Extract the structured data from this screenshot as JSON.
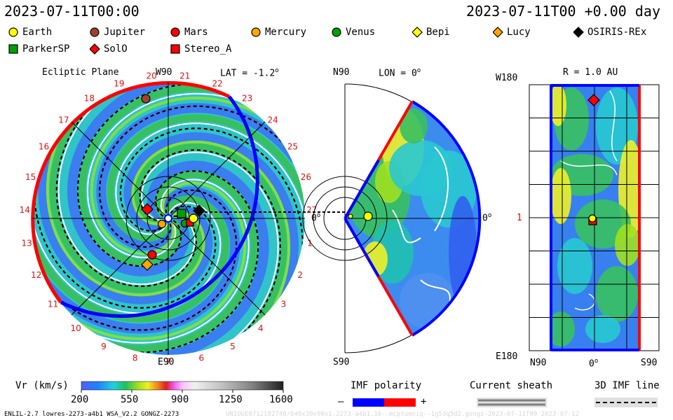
{
  "header": {
    "left_time": "2023-07-11T00:00",
    "right_time": "2023-07-11T00 +0.00 day"
  },
  "legend": {
    "items": [
      {
        "name": "Earth",
        "shape": "circle",
        "color": "#ffff00"
      },
      {
        "name": "Jupiter",
        "shape": "circle",
        "color": "#a0412d"
      },
      {
        "name": "Mars",
        "shape": "circle",
        "color": "#ff0000"
      },
      {
        "name": "Mercury",
        "shape": "circle",
        "color": "#ffa500"
      },
      {
        "name": "Venus",
        "shape": "circle",
        "color": "#00a000"
      },
      {
        "name": "Bepi",
        "shape": "diamond",
        "color": "#ffff00"
      },
      {
        "name": "Lucy",
        "shape": "diamond",
        "color": "#ffa500"
      },
      {
        "name": "OSIRIS-REx",
        "shape": "diamond",
        "color": "#000000"
      },
      {
        "name": "ParkerSP",
        "shape": "square",
        "color": "#00a000"
      },
      {
        "name": "SolO",
        "shape": "diamond",
        "color": "#ff0000"
      },
      {
        "name": "Stereo_A",
        "shape": "square",
        "color": "#ff0000"
      }
    ]
  },
  "panels": {
    "ecliptic": {
      "title": "Ecliptic Plane",
      "top_label": "W90",
      "lat_label": "LAT = -1.2",
      "lat_degree": "o",
      "bottom_label": "E90",
      "zero_label": "0",
      "zero_degree": "o",
      "left_label": "1",
      "rim_numbers": [
        "1",
        "2",
        "3",
        "4",
        "5",
        "6",
        "7",
        "8",
        "9",
        "10",
        "11",
        "12",
        "13",
        "14",
        "15",
        "16",
        "17",
        "18",
        "19",
        "20",
        "21",
        "22",
        "23",
        "24",
        "25",
        "26",
        "27"
      ]
    },
    "meridional": {
      "top_label": "N90",
      "lon_label": "LON = 0",
      "lon_degree": "o",
      "bottom_label": "S90",
      "zero_label": "0",
      "zero_degree": "o"
    },
    "radial": {
      "top_label": "W180",
      "r_label": "R = 1.0 AU",
      "bottom_label": "E180",
      "left_tick": "1",
      "xaxis_left": "N90",
      "xaxis_mid": "0",
      "xaxis_mid_degree": "o",
      "xaxis_right": "S90"
    }
  },
  "colorbar": {
    "label": "Vr (km/s)",
    "ticks": [
      "200",
      "550",
      "900",
      "1250",
      "1600"
    ]
  },
  "imf": {
    "label": "IMF polarity",
    "minus": "–",
    "plus": "+"
  },
  "current_sheath": {
    "label": "Current sheath"
  },
  "imf_line": {
    "label": "3D IMF line"
  },
  "footer": {
    "left": "ENLIL-2.7 lowres-2273-a4b1 WSA_V2.2 GONGZ-2273",
    "right": "UNIQUE0712182740/640x30x90x1.2273-a4b1.16--mcptumniq--1g53q5d2.gongz-2023-07-11T00   2023-07-12"
  },
  "chart_data": {
    "type": "heatmap",
    "quantity": "Vr (km/s)",
    "color_scale_range": [
      200,
      1600
    ],
    "time": "2023-07-11T00:00",
    "ecliptic_latitude_deg": -1.2,
    "meridional_longitude_deg": 0,
    "radial_surface_au": 1.0,
    "bodies_in_ecliptic": [
      "Earth",
      "Jupiter",
      "Mars",
      "Mercury",
      "Venus",
      "Bepi",
      "Lucy",
      "OSIRIS-REx",
      "ParkerSP",
      "SolO",
      "Stereo_A"
    ]
  },
  "colors": {
    "flow_base": "#2ec0c8",
    "slow_blue": "#3a7ef0",
    "fast_green": "#38c060",
    "yellow": "#f0f028",
    "positive_polarity": "#ff0000",
    "negative_polarity": "#0000ff"
  }
}
